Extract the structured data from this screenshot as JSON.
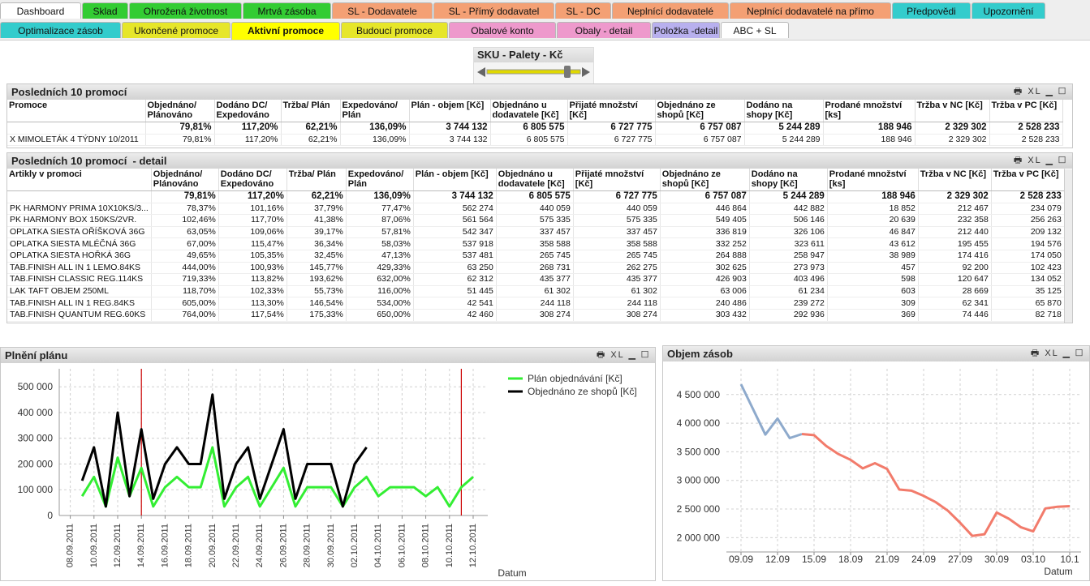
{
  "toolbar_label": "XL",
  "tabs_row1": [
    {
      "label": "Dashboard",
      "color": "#ffffff"
    },
    {
      "label": "Sklad",
      "color": "#33cc33"
    },
    {
      "label": "Ohrožená životnost",
      "color": "#33cc33"
    },
    {
      "label": "Mrtvá zásoba",
      "color": "#33cc33"
    },
    {
      "label": "SL - Dodavatele",
      "color": "#f4a074"
    },
    {
      "label": "SL - Přímý dodavatel",
      "color": "#f4a074"
    },
    {
      "label": "SL - DC",
      "color": "#f4a074"
    },
    {
      "label": "Neplnící dodavatelé",
      "color": "#f4a074"
    },
    {
      "label": "Neplnící dodavatelé na přímo",
      "color": "#f4a074"
    },
    {
      "label": "Předpovědi",
      "color": "#33cccc"
    },
    {
      "label": "Upozornění",
      "color": "#33cccc"
    }
  ],
  "tabs_row2": [
    {
      "label": "Optimalizace zásob",
      "color": "#33cccc"
    },
    {
      "label": "Ukončené promoce",
      "color": "#e6e62a"
    },
    {
      "label": "Aktivní promoce",
      "color": "#ffff00",
      "active": true
    },
    {
      "label": "Budoucí promoce",
      "color": "#e6e62a"
    },
    {
      "label": "Obalové konto",
      "color": "#ee99cc"
    },
    {
      "label": "Obaly - detail",
      "color": "#ee99cc"
    },
    {
      "label": "Položka -detail",
      "color": "#b8b0ee"
    },
    {
      "label": "ABC + SL",
      "color": "#ffffff"
    }
  ],
  "slider": {
    "label": "SKU - Palety - Kč"
  },
  "table1": {
    "title": "Posledních 10 promocí",
    "columns": [
      "Promoce",
      "Objednáno/ Plánováno",
      "Dodáno DC/ Expedováno",
      "Tržba/ Plán",
      "Expedováno/ Plán",
      "Plán - objem [Kč]",
      "Objednáno u dodavatele [Kč]",
      "Přijaté množství [Kč]",
      "Objednáno ze shopů [Kč]",
      "Dodáno na shopy [Kč]",
      "Prodané množství [ks]",
      "Tržba v NC [Kč]",
      "Tržba v PC [Kč]"
    ],
    "totals": [
      "79,81%",
      "117,20%",
      "62,21%",
      "136,09%",
      "3 744 132",
      "6 805 575",
      "6 727 775",
      "6 757 087",
      "5 244 289",
      "188 946",
      "2 329 302",
      "2 528 233"
    ],
    "rows": [
      [
        "X MIMOLETÁK 4 TÝDNY 10/2011",
        "79,81%",
        "117,20%",
        "62,21%",
        "136,09%",
        "3 744 132",
        "6 805 575",
        "6 727 775",
        "6 757 087",
        "5 244 289",
        "188 946",
        "2 329 302",
        "2 528 233"
      ]
    ]
  },
  "table2": {
    "title": "Posledních 10 promocí  - detail",
    "columns": [
      "Artikly v promoci",
      "Objednáno/ Plánováno",
      "Dodáno DC/ Expedováno",
      "Tržba/ Plán",
      "Expedováno/ Plán",
      "Plán - objem [Kč]",
      "Objednáno u dodavatele [Kč]",
      "Přijaté množství [Kč]",
      "Objednáno ze shopů [Kč]",
      "Dodáno na shopy [Kč]",
      "Prodané množství [ks]",
      "Tržba v NC [Kč]",
      "Tržba v PC [Kč]"
    ],
    "totals": [
      "79,81%",
      "117,20%",
      "62,21%",
      "136,09%",
      "3 744 132",
      "6 805 575",
      "6 727 775",
      "6 757 087",
      "5 244 289",
      "188 946",
      "2 329 302",
      "2 528 233"
    ],
    "rows": [
      [
        "PK HARMONY PRIMA 10X10KS/3...",
        "78,37%",
        "101,16%",
        "37,79%",
        "77,47%",
        "562 274",
        "440 059",
        "440 059",
        "446 864",
        "442 882",
        "18 852",
        "212 467",
        "234 079"
      ],
      [
        "PK HARMONY BOX 150KS/2VR.",
        "102,46%",
        "117,70%",
        "41,38%",
        "87,06%",
        "561 564",
        "575 335",
        "575 335",
        "549 405",
        "506 146",
        "20 639",
        "232 358",
        "256 263"
      ],
      [
        "OPLATKA SIESTA OŘÍŠKOVÁ 36G",
        "63,05%",
        "109,06%",
        "39,17%",
        "57,81%",
        "542 347",
        "337 457",
        "337 457",
        "336 819",
        "326 106",
        "46 847",
        "212 440",
        "209 132"
      ],
      [
        "OPLATKA SIESTA MLÉČNÁ 36G",
        "67,00%",
        "115,47%",
        "36,34%",
        "58,03%",
        "537 918",
        "358 588",
        "358 588",
        "332 252",
        "323 611",
        "43 612",
        "195 455",
        "194 576"
      ],
      [
        "OPLATKA SIESTA HOŘKÁ 36G",
        "49,65%",
        "105,35%",
        "32,45%",
        "47,13%",
        "537 481",
        "265 745",
        "265 745",
        "264 888",
        "258 947",
        "38 989",
        "174 416",
        "174 050"
      ],
      [
        "TAB.FINISH ALL IN 1 LEMO.84KS",
        "444,00%",
        "100,93%",
        "145,77%",
        "429,33%",
        "63 250",
        "268 731",
        "262 275",
        "302 625",
        "273 973",
        "457",
        "92 200",
        "102 423"
      ],
      [
        "TAB.FINISH CLASSIC REG.114KS",
        "719,33%",
        "113,82%",
        "193,62%",
        "632,00%",
        "62 312",
        "435 377",
        "435 377",
        "426 903",
        "403 496",
        "598",
        "120 647",
        "134 052"
      ],
      [
        "LAK TAFT OBJEM 250ML",
        "118,70%",
        "102,33%",
        "55,73%",
        "116,00%",
        "51 445",
        "61 302",
        "61 302",
        "63 006",
        "61 234",
        "603",
        "28 669",
        "35 125"
      ],
      [
        "TAB.FINISH ALL IN 1 REG.84KS",
        "605,00%",
        "113,30%",
        "146,54%",
        "534,00%",
        "42 541",
        "244 118",
        "244 118",
        "240 486",
        "239 272",
        "309",
        "62 341",
        "65 870"
      ],
      [
        "TAB.FINISH QUANTUM REG.60KS",
        "764,00%",
        "117,54%",
        "175,33%",
        "650,00%",
        "42 460",
        "308 274",
        "308 274",
        "303 432",
        "292 936",
        "369",
        "74 446",
        "82 718"
      ]
    ]
  },
  "chart_data": [
    {
      "type": "line",
      "title": "Plnění plánu",
      "xlabel": "Datum",
      "grid": true,
      "legend": "top-right",
      "categories": [
        "08.09.2011",
        null,
        "10.09.2011",
        null,
        "12.09.2011",
        null,
        "14.09.2011",
        null,
        "16.09.2011",
        null,
        "18.09.2011",
        null,
        "20.09.2011",
        null,
        "22.09.2011",
        null,
        "24.09.2011",
        null,
        "26.09.2011",
        null,
        "28.09.2011",
        null,
        "30.09.2011",
        null,
        "02.10.2011",
        null,
        "04.10.2011",
        null,
        "06.10.2011",
        null,
        "08.10.2011",
        null,
        "10.10.2011",
        null,
        "12.10.2011"
      ],
      "series": [
        {
          "name": "Plán objednávání [Kč]",
          "color": "#33ee33",
          "values": [
            null,
            75000,
            150000,
            35000,
            225000,
            75000,
            185000,
            35000,
            110000,
            150000,
            110000,
            110000,
            265000,
            35000,
            110000,
            150000,
            35000,
            110000,
            185000,
            35000,
            110000,
            110000,
            110000,
            35000,
            110000,
            150000,
            75000,
            110000,
            110000,
            110000,
            75000,
            110000,
            35000,
            110000,
            150000
          ]
        },
        {
          "name": "Objednáno ze shopů [Kč]",
          "color": "#000000",
          "values": [
            null,
            135000,
            265000,
            35000,
            400000,
            75000,
            335000,
            65000,
            200000,
            265000,
            200000,
            200000,
            470000,
            65000,
            200000,
            265000,
            65000,
            200000,
            335000,
            65000,
            200000,
            200000,
            200000,
            35000,
            200000,
            265000,
            null,
            null,
            null,
            null,
            null,
            null,
            null,
            null,
            null
          ]
        }
      ],
      "reference_lines": [
        {
          "x": 6,
          "color": "#cc0000"
        },
        {
          "x": 33,
          "color": "#cc0000"
        }
      ],
      "ylim": [
        0,
        570000
      ],
      "yticks": [
        {
          "value": 0,
          "label": "0"
        },
        {
          "value": 100000,
          "label": "100 000"
        },
        {
          "value": 200000,
          "label": "200 000"
        },
        {
          "value": 300000,
          "label": "300 000"
        },
        {
          "value": 400000,
          "label": "400 000"
        },
        {
          "value": 500000,
          "label": "500 000"
        }
      ]
    },
    {
      "type": "line",
      "title": "Objem zásob",
      "xlabel": "Datum",
      "grid": true,
      "categories": [
        "09.09",
        null,
        null,
        "12.09",
        null,
        null,
        "15.09",
        null,
        null,
        "18.09",
        null,
        null,
        "21.09",
        null,
        null,
        "24.09",
        null,
        null,
        "27.09",
        null,
        null,
        "30.09",
        null,
        null,
        "03.10",
        null,
        null,
        "10.1"
      ],
      "series": [
        {
          "color": "#8eaacc",
          "values": [
            4680000,
            4240000,
            3800000,
            4080000,
            3740000,
            3810000,
            null,
            null,
            null,
            null,
            null,
            null,
            null,
            null,
            null,
            null,
            null,
            null,
            null,
            null,
            null,
            null,
            null,
            null,
            null,
            null,
            null,
            null
          ]
        },
        {
          "color": "#f27b6b",
          "values": [
            null,
            null,
            null,
            null,
            null,
            3810000,
            3790000,
            3600000,
            3460000,
            3360000,
            3210000,
            3300000,
            3200000,
            2840000,
            2820000,
            2730000,
            2620000,
            2470000,
            2260000,
            2030000,
            2060000,
            2440000,
            2330000,
            2180000,
            2110000,
            2510000,
            2540000,
            2550000
          ]
        }
      ],
      "ylim": [
        1750000,
        4950000
      ],
      "yticks": [
        {
          "value": 2000000,
          "label": "2 000 000"
        },
        {
          "value": 2500000,
          "label": "2 500 000"
        },
        {
          "value": 3000000,
          "label": "3 000 000"
        },
        {
          "value": 3500000,
          "label": "3 500 000"
        },
        {
          "value": 4000000,
          "label": "4 000 000"
        },
        {
          "value": 4500000,
          "label": "4 500 000"
        }
      ]
    }
  ]
}
